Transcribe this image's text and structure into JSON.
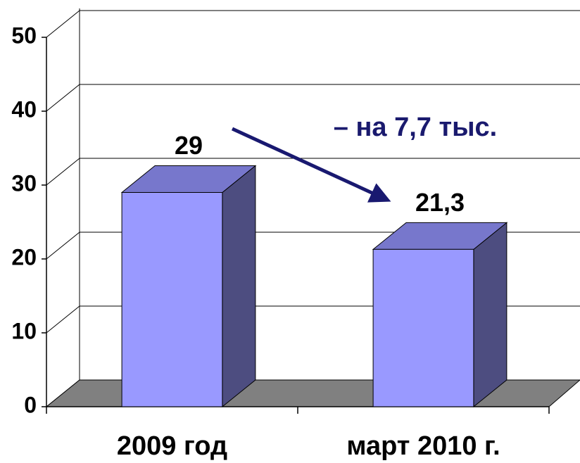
{
  "chart_data": {
    "type": "bar",
    "categories": [
      "2009 год",
      "март 2010 г."
    ],
    "values": [
      29,
      21.3
    ],
    "value_labels": [
      "29",
      "21,3"
    ],
    "annotation": "– на 7,7 тыс.",
    "color": "#9999ff",
    "ylim": [
      0,
      50
    ],
    "yticks": [
      0,
      10,
      20,
      30,
      40,
      50
    ],
    "grid": true
  }
}
